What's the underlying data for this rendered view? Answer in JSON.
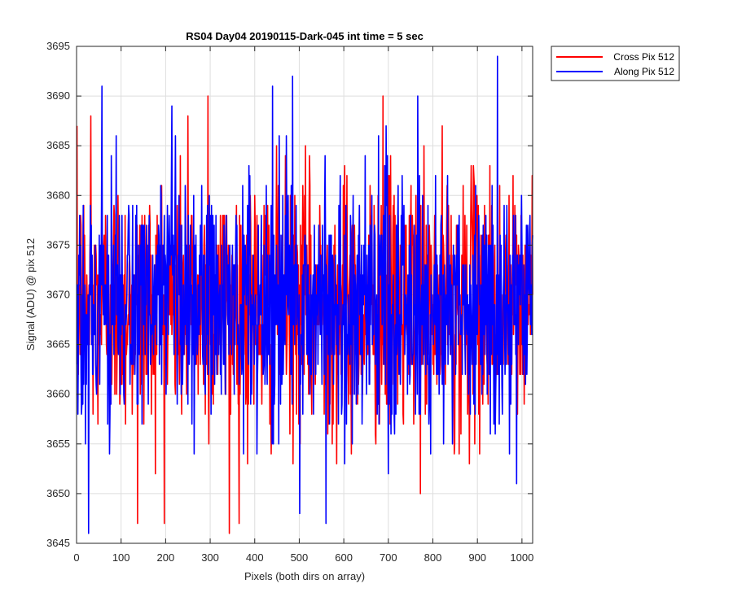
{
  "chart_data": {
    "type": "line",
    "title": "RS04 Day04 20190115-Dark-045 int time = 5 sec",
    "xlabel": "Pixels (both dirs on array)",
    "ylabel": "Signal (ADU) @ pix 512",
    "xlim": [
      0,
      1024
    ],
    "ylim": [
      3645,
      3695
    ],
    "xticks": [
      0,
      100,
      200,
      300,
      400,
      500,
      600,
      700,
      800,
      900,
      1000
    ],
    "yticks": [
      3645,
      3650,
      3655,
      3660,
      3665,
      3670,
      3675,
      3680,
      3685,
      3690,
      3695
    ],
    "grid": true,
    "legend_position": "outside-top-right",
    "series": [
      {
        "name": "Cross Pix 512",
        "color": "#ff0000",
        "x_range": [
          1,
          1024
        ],
        "approx_mean": 3669,
        "approx_range": [
          3646,
          3690
        ],
        "marked_extremes": [
          {
            "x": 295,
            "y": 3690
          },
          {
            "x": 688,
            "y": 3690
          },
          {
            "x": 137,
            "y": 3647
          },
          {
            "x": 343,
            "y": 3646
          },
          {
            "x": 32,
            "y": 3688
          },
          {
            "x": 250,
            "y": 3688
          }
        ]
      },
      {
        "name": "Along Pix 512",
        "color": "#0000ff",
        "x_range": [
          1,
          1024
        ],
        "approx_mean": 3669,
        "approx_range": [
          3646,
          3694
        ],
        "marked_extremes": [
          {
            "x": 945,
            "y": 3694
          },
          {
            "x": 485,
            "y": 3692
          },
          {
            "x": 440,
            "y": 3691
          },
          {
            "x": 57,
            "y": 3691
          },
          {
            "x": 27,
            "y": 3646
          },
          {
            "x": 560,
            "y": 3647
          }
        ]
      }
    ]
  }
}
